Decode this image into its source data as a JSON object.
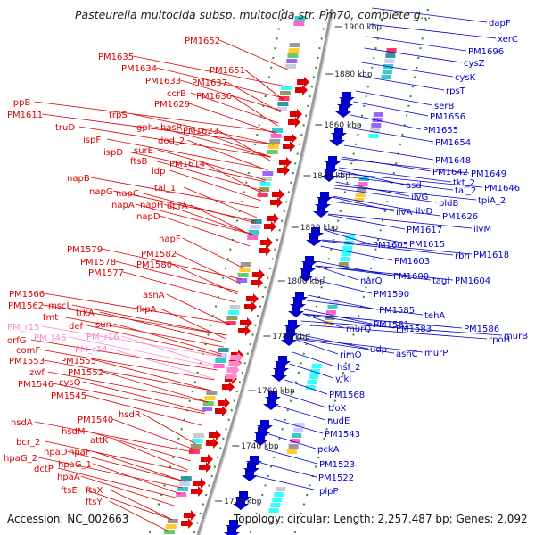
{
  "title": "Pasteurella multocida subsp. multocida str. Pm70, complete g...",
  "footer": {
    "accession": "Accession: NC_002663",
    "summary": "Topology: circular; Length: 2,257,487 bp; Genes: 2,092"
  },
  "colors": {
    "forward": "#dd0000",
    "reverse": "#0000cc",
    "rna": "#ff88cc",
    "backbone": "#999999",
    "tick": "#338833"
  },
  "kbp_ticks": [
    "1900 kbp",
    "1880 kbp",
    "1860 kbp",
    "1840 kbp",
    "1820 kbp",
    "1800 kbp",
    "1780 kbp",
    "1760 kbp",
    "1740 kbp",
    "1720 kbp"
  ],
  "left_labels": [
    "PM1652",
    "PM1635",
    "PM1634",
    "PM1651",
    "PM1633",
    "PM1637",
    "ccrB",
    "PM1636",
    "PM1629",
    "lppB",
    "trpS",
    "PM1611",
    "gph",
    "hasR",
    "truD",
    "PM1623",
    "ispF",
    "dod_2",
    "ispD",
    "surE",
    "ftsB",
    "PM1614",
    "idp",
    "napB",
    "tal_1",
    "napG",
    "napC",
    "napA",
    "napH",
    "dprA",
    "napD",
    "napF",
    "PM1579",
    "PM1582",
    "PM1578",
    "PM1580",
    "PM1577",
    "asnA",
    "PM1566",
    "PM1562",
    "mscL",
    "trkA",
    "fkpA",
    "fmt",
    "def",
    "sun",
    "PM_r15",
    "PM_r16",
    "orfG",
    "PM_t46",
    "PM_r14",
    "comF",
    "PM1553",
    "PM1555",
    "zwf",
    "PM1552",
    "PM1546",
    "cysQ",
    "PM1545",
    "hsdR",
    "hsdA",
    "PM1540",
    "hsdM",
    "attK",
    "bcr_2",
    "hpaD",
    "hpaF",
    "hpaG_2",
    "hpaG_1",
    "dctP",
    "hpaA",
    "ftsE",
    "ftsX",
    "ftsY"
  ],
  "right_labels": [
    "dapF",
    "xerC",
    "PM1696",
    "cysZ",
    "cysK",
    "rpsT",
    "serB",
    "PM1656",
    "PM1655",
    "PM1654",
    "PM1648",
    "PM1642",
    "PM1649",
    "tkt_2",
    "PM1646",
    "asd",
    "tal_2",
    "ilvG",
    "pldB",
    "tpiA_2",
    "ilvA",
    "ilvD",
    "PM1626",
    "ilvM",
    "PM1617",
    "PM1605",
    "PM1615",
    "rbn",
    "PM1618",
    "PM1603",
    "PM1600",
    "tagI",
    "PM1604",
    "narQ",
    "PM1590",
    "PM1585",
    "tehA",
    "PM1583",
    "PM1586",
    "PM1581",
    "rpoH",
    "murB",
    "murQ",
    "udp",
    "asnC",
    "murP",
    "rimO",
    "hsf_2",
    "yfkJ",
    "PM1568",
    "tfoX",
    "nudE",
    "PM1543",
    "pckA",
    "PM1523",
    "PM1522",
    "plpP"
  ]
}
